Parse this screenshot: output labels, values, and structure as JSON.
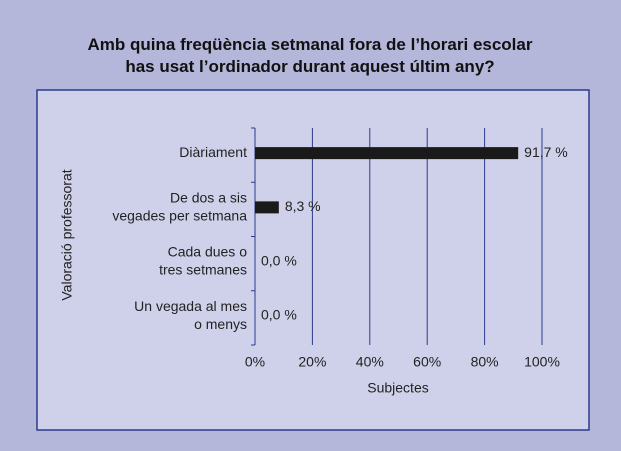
{
  "chart_data": {
    "type": "bar",
    "orientation": "horizontal",
    "title": "Amb quina freqüència setmanal fora de l’horari escolar\nhas usat l’ordinador durant aquest últim any?",
    "categories": [
      "Diàriament",
      "De dos a sis\nvegades per setmana",
      "Cada dues o\ntres setmanes",
      "Un vegada al mes\no menys"
    ],
    "values": [
      91.7,
      8.3,
      0,
      0
    ],
    "value_labels": [
      "91,7 %",
      "8,3 %",
      "0,0 %",
      "0,0 %"
    ],
    "color": "#1a1a1a",
    "xlabel": "Subjectes",
    "ylabel": "Valoració professorat",
    "xlim": [
      0,
      100
    ],
    "xticks": [
      {
        "value": 0,
        "label": "0%"
      },
      {
        "value": 20,
        "label": "20%"
      },
      {
        "value": 40,
        "label": "40%"
      },
      {
        "value": 60,
        "label": "60%"
      },
      {
        "value": 80,
        "label": "80%"
      },
      {
        "value": 100,
        "label": "100%"
      }
    ],
    "grid": true
  }
}
